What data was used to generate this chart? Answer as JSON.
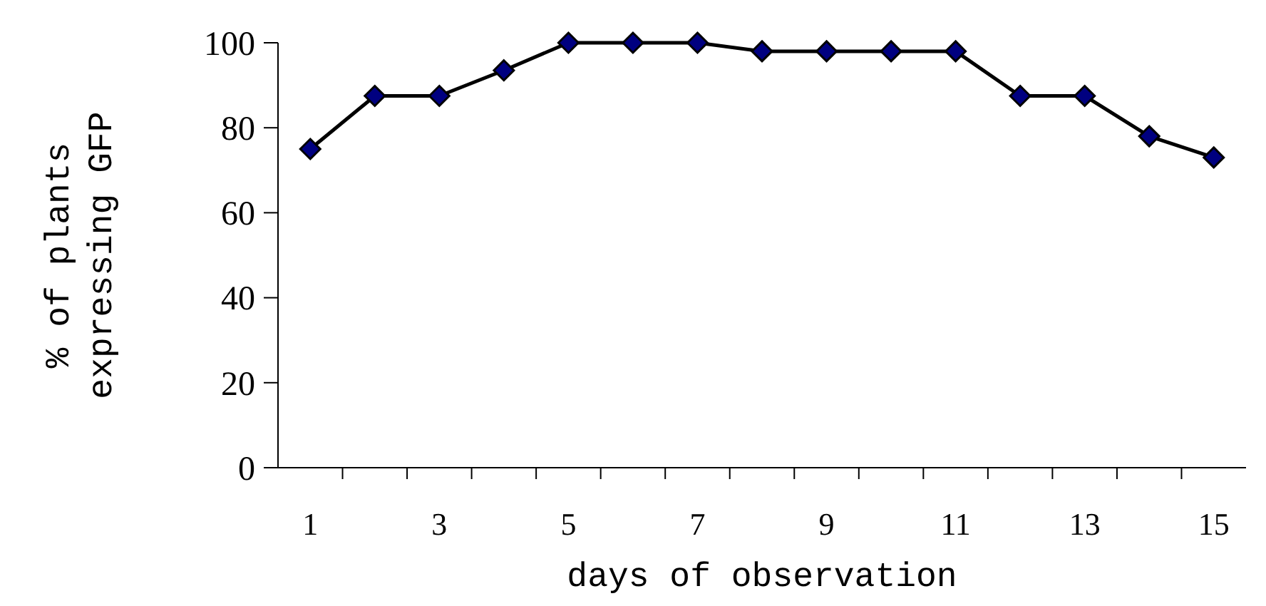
{
  "chart_data": {
    "type": "line",
    "xlabel": "days of observation",
    "ylabel": "% of plants\nexpressing GFP",
    "x": [
      1,
      2,
      3,
      4,
      5,
      6,
      7,
      8,
      9,
      10,
      11,
      12,
      13,
      14,
      15
    ],
    "xlim": [
      0.5,
      15.5
    ],
    "xticks": [
      1,
      {
        "value": 1.5,
        "label": null
      },
      {
        "value": 2.5,
        "label": null
      },
      3,
      {
        "value": 3.5,
        "label": null
      },
      {
        "value": 4.5,
        "label": null
      },
      5,
      {
        "value": 5.5,
        "label": null
      },
      {
        "value": 6.5,
        "label": null
      },
      7,
      {
        "value": 7.5,
        "label": null
      },
      {
        "value": 8.5,
        "label": null
      },
      9,
      {
        "value": 9.5,
        "label": null
      },
      {
        "value": 10.5,
        "label": null
      },
      11,
      {
        "value": 11.5,
        "label": null
      },
      {
        "value": 12.5,
        "label": null
      },
      13,
      {
        "value": 13.5,
        "label": null
      },
      {
        "value": 14.5,
        "label": null
      },
      15
    ],
    "series": [
      {
        "color": "#000080",
        "values": [
          75,
          87.5,
          87.5,
          93.5,
          100,
          100,
          100,
          98,
          98,
          98,
          98,
          87.5,
          87.5,
          78,
          73
        ]
      }
    ],
    "ylim": [
      0,
      100
    ],
    "yticks": [
      0,
      20,
      40,
      60,
      80,
      100
    ],
    "marker": "diamond",
    "line_style": "solid",
    "grid": false
  }
}
